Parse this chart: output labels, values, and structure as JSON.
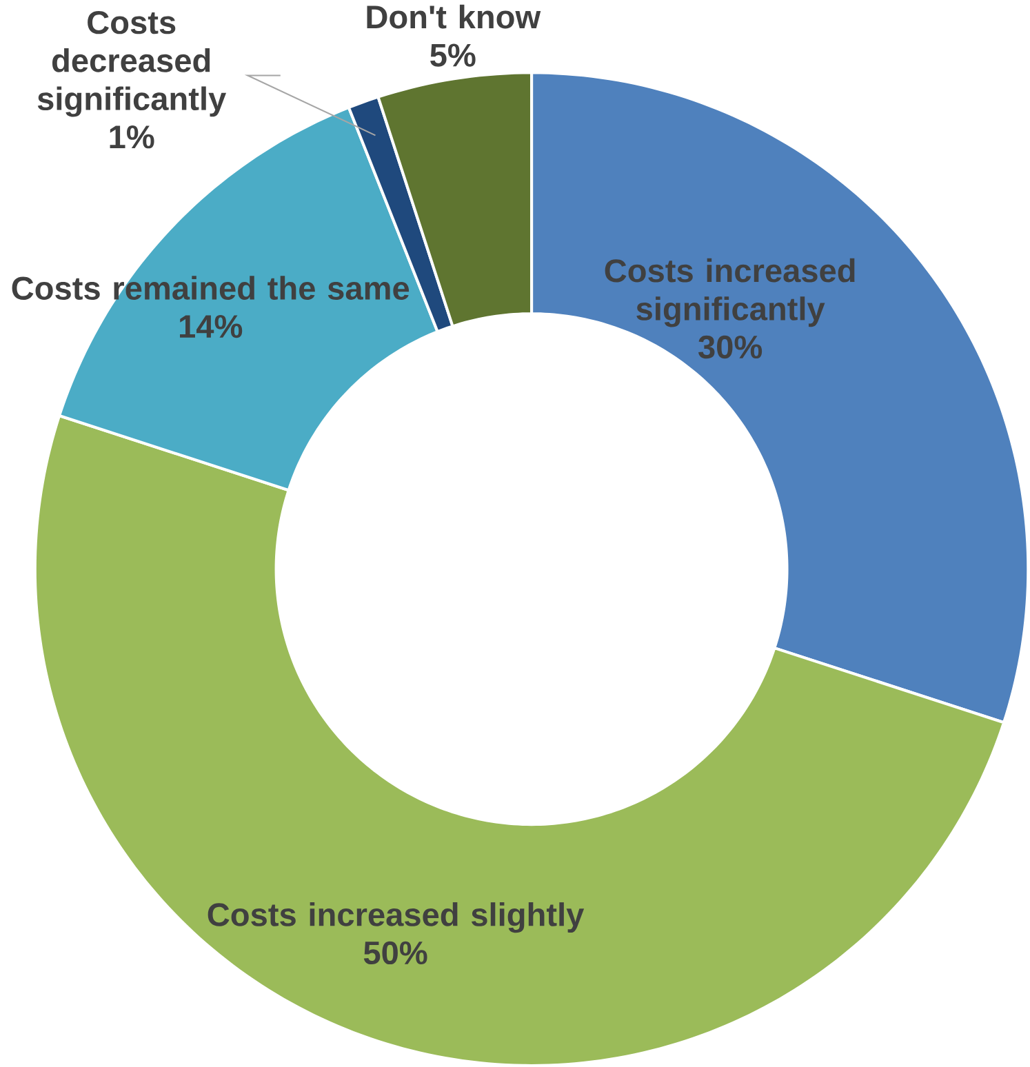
{
  "chart_data": {
    "type": "donut",
    "categories": [
      "Costs increased significantly",
      "Costs increased slightly",
      "Costs remained the same",
      "Costs decreased significantly",
      "Don't know"
    ],
    "values": [
      30,
      50,
      14,
      1,
      5
    ],
    "value_labels": [
      "30%",
      "50%",
      "14%",
      "1%",
      "5%"
    ],
    "colors": [
      "#4f81bd",
      "#9bbb59",
      "#4bacc6",
      "#1f497d",
      "#5f7530"
    ]
  }
}
